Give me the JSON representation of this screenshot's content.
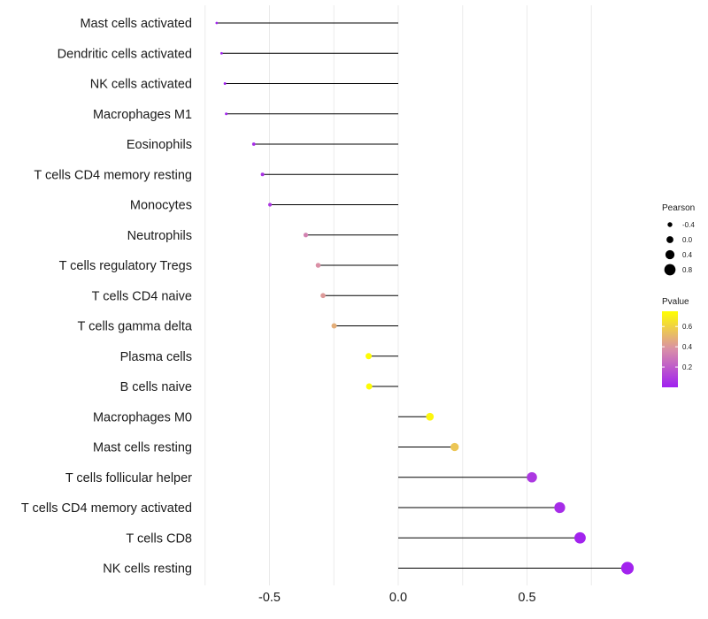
{
  "chart_data": {
    "type": "lollipop",
    "title": "",
    "xlabel": "",
    "ylabel": "",
    "xlim": [
      -0.75,
      0.92
    ],
    "x_ticks": [
      -0.5,
      0.0,
      0.5
    ],
    "x_tick_labels": [
      "-0.5",
      "0.0",
      "0.5"
    ],
    "grid": true,
    "categories": [
      "Mast cells activated",
      "Dendritic cells activated",
      "NK cells activated",
      "Macrophages M1",
      "Eosinophils",
      "T cells CD4 memory resting",
      "Monocytes",
      "Neutrophils",
      "T cells regulatory  Tregs",
      "T cells CD4 naive",
      "T cells gamma delta",
      "Plasma cells",
      "B cells naive",
      "Macrophages M0",
      "Mast cells resting",
      "T cells follicular helper",
      "T cells CD4 memory activated",
      "T cells CD8",
      "NK cells resting"
    ],
    "pearson": [
      -0.705,
      -0.686,
      -0.673,
      -0.668,
      -0.561,
      -0.527,
      -0.498,
      -0.359,
      -0.311,
      -0.292,
      -0.249,
      -0.115,
      -0.113,
      0.123,
      0.219,
      0.519,
      0.627,
      0.706,
      0.89
    ],
    "pvalue": [
      0.01,
      0.01,
      0.01,
      0.01,
      0.04,
      0.06,
      0.08,
      0.33,
      0.38,
      0.41,
      0.48,
      0.74,
      0.74,
      0.72,
      0.56,
      0.08,
      0.04,
      0.01,
      0.01
    ],
    "legend": {
      "placement": "right",
      "size_title": "Pearson",
      "size_breaks": [
        -0.4,
        0.0,
        0.4,
        0.8
      ],
      "size_labels": [
        "-0.4",
        "0.0",
        "0.4",
        "0.8"
      ],
      "color_title": "Pvalue",
      "color_breaks": [
        0.2,
        0.4,
        0.6
      ],
      "color_labels": [
        "0.2",
        "0.4",
        "0.6"
      ],
      "color_low": "#a020f0",
      "color_mid": "#d98fa8",
      "color_high": "#ffff00",
      "pvalue_range": [
        0.0,
        0.75
      ]
    },
    "segment_color": "#000000",
    "grid_color": "#ebebeb"
  }
}
